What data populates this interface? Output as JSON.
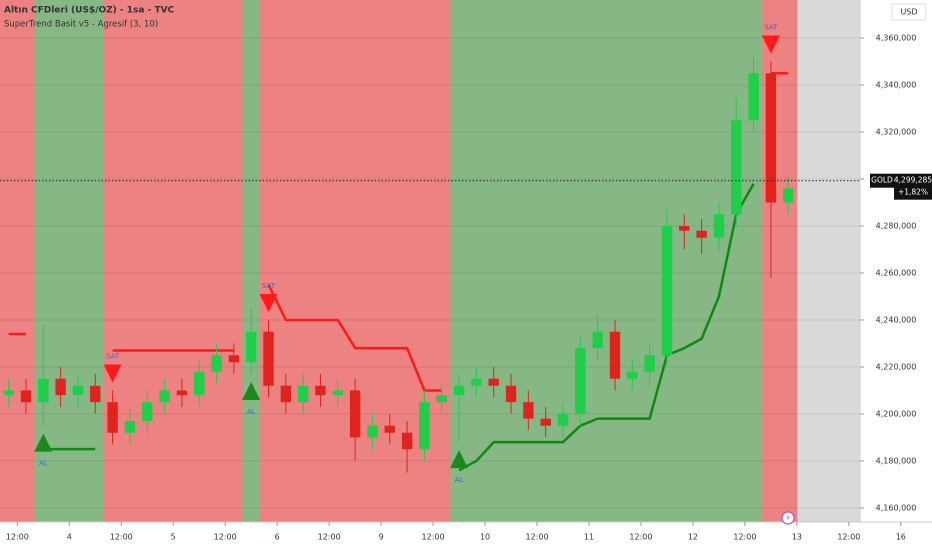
{
  "chart_data": {
    "type": "candlestick",
    "title": "Altın CFDleri (US$/OZ) - 1sa - TVC",
    "subtitle": "SuperTrend Basit v5 - Agresif (3, 10)",
    "currency": "USD",
    "symbol": "GOLD",
    "last_price": 4299285,
    "last_price_label": "4,299,285",
    "change_label": "+1,82%",
    "buy_label": "AL",
    "sell_label": "SAT",
    "grid": true,
    "up_color": "#1fcf4a",
    "down_color": "#e0231c",
    "bull_zone_color": "#86b886",
    "bear_zone_color": "#ec8282",
    "x": [
      2,
      6,
      10,
      14,
      18,
      22,
      26,
      30,
      34,
      38,
      42,
      46,
      50,
      54,
      58,
      62,
      66,
      70,
      74,
      78,
      82,
      86,
      90,
      94,
      98,
      102,
      106,
      110,
      114,
      118,
      122,
      126,
      130,
      134,
      138,
      142,
      146,
      150,
      154,
      158,
      162,
      166,
      170,
      174,
      178,
      182
    ],
    "open": [
      4208000,
      4210000,
      4205000,
      4215000,
      4208000,
      4212000,
      4205000,
      4192000,
      4197000,
      4205000,
      4210000,
      4208000,
      4218000,
      4225000,
      4222000,
      4235000,
      4212000,
      4205000,
      4212000,
      4208000,
      4210000,
      4190000,
      4195000,
      4192000,
      4185000,
      4205000,
      4208000,
      4212000,
      4215000,
      4212000,
      4205000,
      4198000,
      4195000,
      4200000,
      4228000,
      4235000,
      4215000,
      4218000,
      4225000,
      4280000,
      4278000,
      4275000,
      4285000,
      4325000,
      4345000,
      4290000
    ],
    "high": [
      4215000,
      4215000,
      4238000,
      4220000,
      4217000,
      4217000,
      4210000,
      4202000,
      4210000,
      4215000,
      4215000,
      4223000,
      4230000,
      4230000,
      4245000,
      4240000,
      4217000,
      4217000,
      4217000,
      4215000,
      4215000,
      4200000,
      4200000,
      4197000,
      4210000,
      4213000,
      4217000,
      4220000,
      4220000,
      4217000,
      4210000,
      4203000,
      4205000,
      4233000,
      4242000,
      4240000,
      4223000,
      4230000,
      4287000,
      4285000,
      4283000,
      4290000,
      4335000,
      4352000,
      4350000,
      4301000
    ],
    "low": [
      4203000,
      4200000,
      4195000,
      4203000,
      4203000,
      4200000,
      4187000,
      4187000,
      4192000,
      4200000,
      4203000,
      4203000,
      4213000,
      4217000,
      4217000,
      4207000,
      4200000,
      4200000,
      4203000,
      4203000,
      4180000,
      4185000,
      4187000,
      4175000,
      4180000,
      4200000,
      4188000,
      4207000,
      4207000,
      4200000,
      4193000,
      4190000,
      4190000,
      4195000,
      4223000,
      4210000,
      4210000,
      4213000,
      4220000,
      4270000,
      4268000,
      4270000,
      4280000,
      4320000,
      4258000,
      4285000
    ],
    "close": [
      4210000,
      4205000,
      4215000,
      4208000,
      4212000,
      4205000,
      4192000,
      4197000,
      4205000,
      4210000,
      4208000,
      4218000,
      4225000,
      4222000,
      4235000,
      4212000,
      4205000,
      4212000,
      4208000,
      4210000,
      4190000,
      4195000,
      4192000,
      4185000,
      4205000,
      4208000,
      4212000,
      4215000,
      4212000,
      4205000,
      4198000,
      4195000,
      4200000,
      4228000,
      4235000,
      4215000,
      4218000,
      4225000,
      4280000,
      4278000,
      4275000,
      4285000,
      4325000,
      4345000,
      4290000,
      4296000
    ],
    "series": [
      {
        "name": "SuperTrend Down",
        "color": "#ff1a1a",
        "values": [
          4234000,
          4234000,
          null,
          null,
          null,
          null,
          4227000,
          4227000,
          4227000,
          4227000,
          4227000,
          4227000,
          4227000,
          4227000,
          null,
          4255000,
          4240000,
          4240000,
          4240000,
          4240000,
          4228000,
          4228000,
          4228000,
          4228000,
          4210000,
          4210000,
          null,
          null,
          null,
          null,
          null,
          null,
          null,
          null,
          null,
          null,
          null,
          null,
          null,
          null,
          null,
          null,
          null,
          null,
          4345000,
          4345000
        ]
      },
      {
        "name": "SuperTrend Up",
        "color": "#0e8a0e",
        "values": [
          null,
          null,
          4185000,
          4185000,
          4185000,
          4185000,
          null,
          null,
          null,
          null,
          null,
          null,
          null,
          null,
          4208000,
          null,
          null,
          null,
          null,
          null,
          null,
          null,
          null,
          null,
          null,
          null,
          4176000,
          4180000,
          4188000,
          4188000,
          4188000,
          4188000,
          4188000,
          4195000,
          4198000,
          4198000,
          4198000,
          4198000,
          4225000,
          4228000,
          4232000,
          4250000,
          4285000,
          4298000,
          null,
          null
        ]
      }
    ],
    "xlim": [
      0,
      215.2
    ],
    "xticks": [
      {
        "value": 4,
        "label": "12:00"
      },
      {
        "value": 16,
        "label": "4"
      },
      {
        "value": 28,
        "label": "12:00"
      },
      {
        "value": 40,
        "label": "5"
      },
      {
        "value": 52,
        "label": "12:00"
      },
      {
        "value": 64,
        "label": "6"
      },
      {
        "value": 76,
        "label": "12:00"
      },
      {
        "value": 88,
        "label": "9"
      },
      {
        "value": 100,
        "label": "12:00"
      },
      {
        "value": 112,
        "label": "10"
      },
      {
        "value": 124,
        "label": "12:00"
      },
      {
        "value": 136,
        "label": "11"
      },
      {
        "value": 148,
        "label": "12:00"
      },
      {
        "value": 160,
        "label": "12"
      },
      {
        "value": 172,
        "label": "12:00"
      },
      {
        "value": 184,
        "label": "13"
      },
      {
        "value": 196,
        "label": "12:00"
      },
      {
        "value": 208,
        "label": "16"
      }
    ],
    "ylim": [
      4154000,
      4376200
    ],
    "yticks": [
      {
        "value": 4160000,
        "label": "4,160,000"
      },
      {
        "value": 4180000,
        "label": "4,180,000"
      },
      {
        "value": 4200000,
        "label": "4,200,000"
      },
      {
        "value": 4220000,
        "label": "4,220,000"
      },
      {
        "value": 4240000,
        "label": "4,240,000"
      },
      {
        "value": 4260000,
        "label": "4,260,000"
      },
      {
        "value": 4280000,
        "label": "4,280,000"
      },
      {
        "value": 4300000,
        "label": "4,300,000"
      },
      {
        "value": 4320000,
        "label": "4,320,000"
      },
      {
        "value": 4340000,
        "label": "4,340,000"
      },
      {
        "value": 4360000,
        "label": "4,360,000"
      }
    ]
  }
}
